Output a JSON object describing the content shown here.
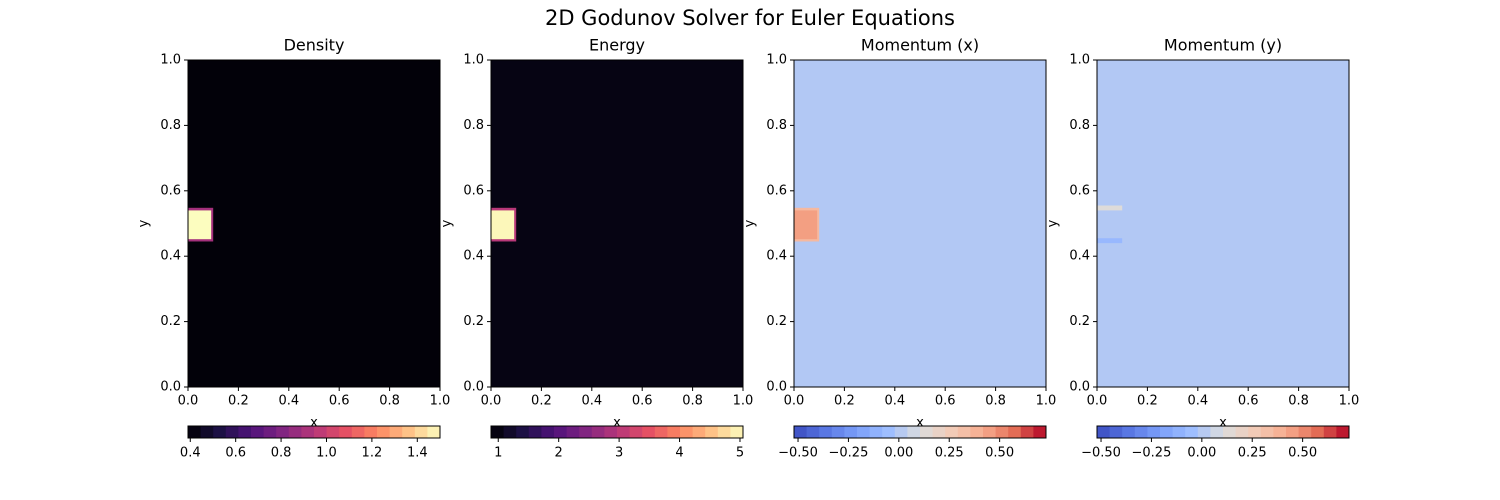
{
  "title": "2D Godunov Solver for Euler Equations",
  "chart_data": [
    {
      "type": "heatmap",
      "title": "Density",
      "xlabel": "x",
      "ylabel": "y",
      "colormap": "magma",
      "xlim": [
        0,
        1
      ],
      "ylim": [
        0,
        1
      ],
      "xticks": [
        {
          "value": 0,
          "label": "0.0"
        },
        0.2,
        0.4,
        0.6,
        0.8,
        {
          "value": 1,
          "label": "1.0"
        }
      ],
      "yticks": [
        {
          "value": 0,
          "label": "0.0"
        },
        0.2,
        0.4,
        0.6,
        0.8,
        {
          "value": 1,
          "label": "1.0"
        }
      ],
      "background": 0.4,
      "patches": [
        {
          "x": [
            0,
            0.1
          ],
          "y": [
            0.445,
            0.548
          ],
          "value": 0.9
        },
        {
          "x": [
            0,
            0.092
          ],
          "y": [
            0.452,
            0.54
          ],
          "value": 1.5
        }
      ],
      "colorbar": {
        "clim": [
          0.39,
          1.5
        ],
        "ticks": [
          0.4,
          0.6,
          0.8,
          {
            "value": 1,
            "label": "1.0"
          },
          1.2,
          1.4
        ]
      }
    },
    {
      "type": "heatmap",
      "title": "Energy",
      "xlabel": "x",
      "ylabel": "y",
      "colormap": "magma",
      "xlim": [
        0,
        1
      ],
      "ylim": [
        0,
        1
      ],
      "xticks": [
        {
          "value": 0,
          "label": "0.0"
        },
        0.2,
        0.4,
        0.6,
        0.8,
        {
          "value": 1,
          "label": "1.0"
        }
      ],
      "yticks": [
        {
          "value": 0,
          "label": "0.0"
        },
        0.2,
        0.4,
        0.6,
        0.8,
        {
          "value": 1,
          "label": "1.0"
        }
      ],
      "background": 1,
      "patches": [
        {
          "x": [
            0,
            0.1
          ],
          "y": [
            0.445,
            0.548
          ],
          "value": 3
        },
        {
          "x": [
            0,
            0.092
          ],
          "y": [
            0.452,
            0.54
          ],
          "value": 5
        }
      ],
      "colorbar": {
        "clim": [
          0.88,
          5.05
        ],
        "ticks": [
          1,
          2,
          3,
          4,
          5
        ]
      }
    },
    {
      "type": "heatmap",
      "title": "Momentum (x)",
      "xlabel": "x",
      "ylabel": "y",
      "colormap": "coolwarm",
      "xlim": [
        0,
        1
      ],
      "ylim": [
        0,
        1
      ],
      "xticks": [
        {
          "value": 0,
          "label": "0.0"
        },
        0.2,
        0.4,
        0.6,
        0.8,
        {
          "value": 1,
          "label": "1.0"
        }
      ],
      "yticks": [
        {
          "value": 0,
          "label": "0.0"
        },
        0.2,
        0.4,
        0.6,
        0.8,
        {
          "value": 1,
          "label": "1.0"
        }
      ],
      "background": 0,
      "patches": [
        {
          "x": [
            0,
            0.1
          ],
          "y": [
            0.445,
            0.548
          ],
          "value": 0.35
        },
        {
          "x": [
            0,
            0.092
          ],
          "y": [
            0.452,
            0.54
          ],
          "value": 0.45
        }
      ],
      "colorbar": {
        "clim": [
          -0.52,
          0.73
        ],
        "ticks": [
          {
            "value": -0.5,
            "label": "−0.50"
          },
          {
            "value": -0.25,
            "label": "−0.25"
          },
          {
            "value": 0,
            "label": "0.00"
          },
          {
            "value": 0.25,
            "label": "0.25"
          },
          {
            "value": 0.5,
            "label": "0.50"
          }
        ]
      }
    },
    {
      "type": "heatmap",
      "title": "Momentum (y)",
      "xlabel": "x",
      "ylabel": "y",
      "colormap": "coolwarm",
      "xlim": [
        0,
        1
      ],
      "ylim": [
        0,
        1
      ],
      "xticks": [
        {
          "value": 0,
          "label": "0.0"
        },
        0.2,
        0.4,
        0.6,
        0.8,
        {
          "value": 1,
          "label": "1.0"
        }
      ],
      "yticks": [
        {
          "value": 0,
          "label": "0.0"
        },
        0.2,
        0.4,
        0.6,
        0.8,
        {
          "value": 1,
          "label": "1.0"
        }
      ],
      "background": 0,
      "patches": [
        {
          "x": [
            0,
            0.1
          ],
          "y": [
            0.54,
            0.555
          ],
          "value": 0.12
        },
        {
          "x": [
            0,
            0.1
          ],
          "y": [
            0.44,
            0.455
          ],
          "value": -0.08
        }
      ],
      "colorbar": {
        "clim": [
          -0.52,
          0.73
        ],
        "ticks": [
          {
            "value": -0.5,
            "label": "−0.50"
          },
          {
            "value": -0.25,
            "label": "−0.25"
          },
          {
            "value": 0,
            "label": "0.00"
          },
          {
            "value": 0.25,
            "label": "0.25"
          },
          {
            "value": 0.5,
            "label": "0.50"
          }
        ]
      }
    }
  ]
}
